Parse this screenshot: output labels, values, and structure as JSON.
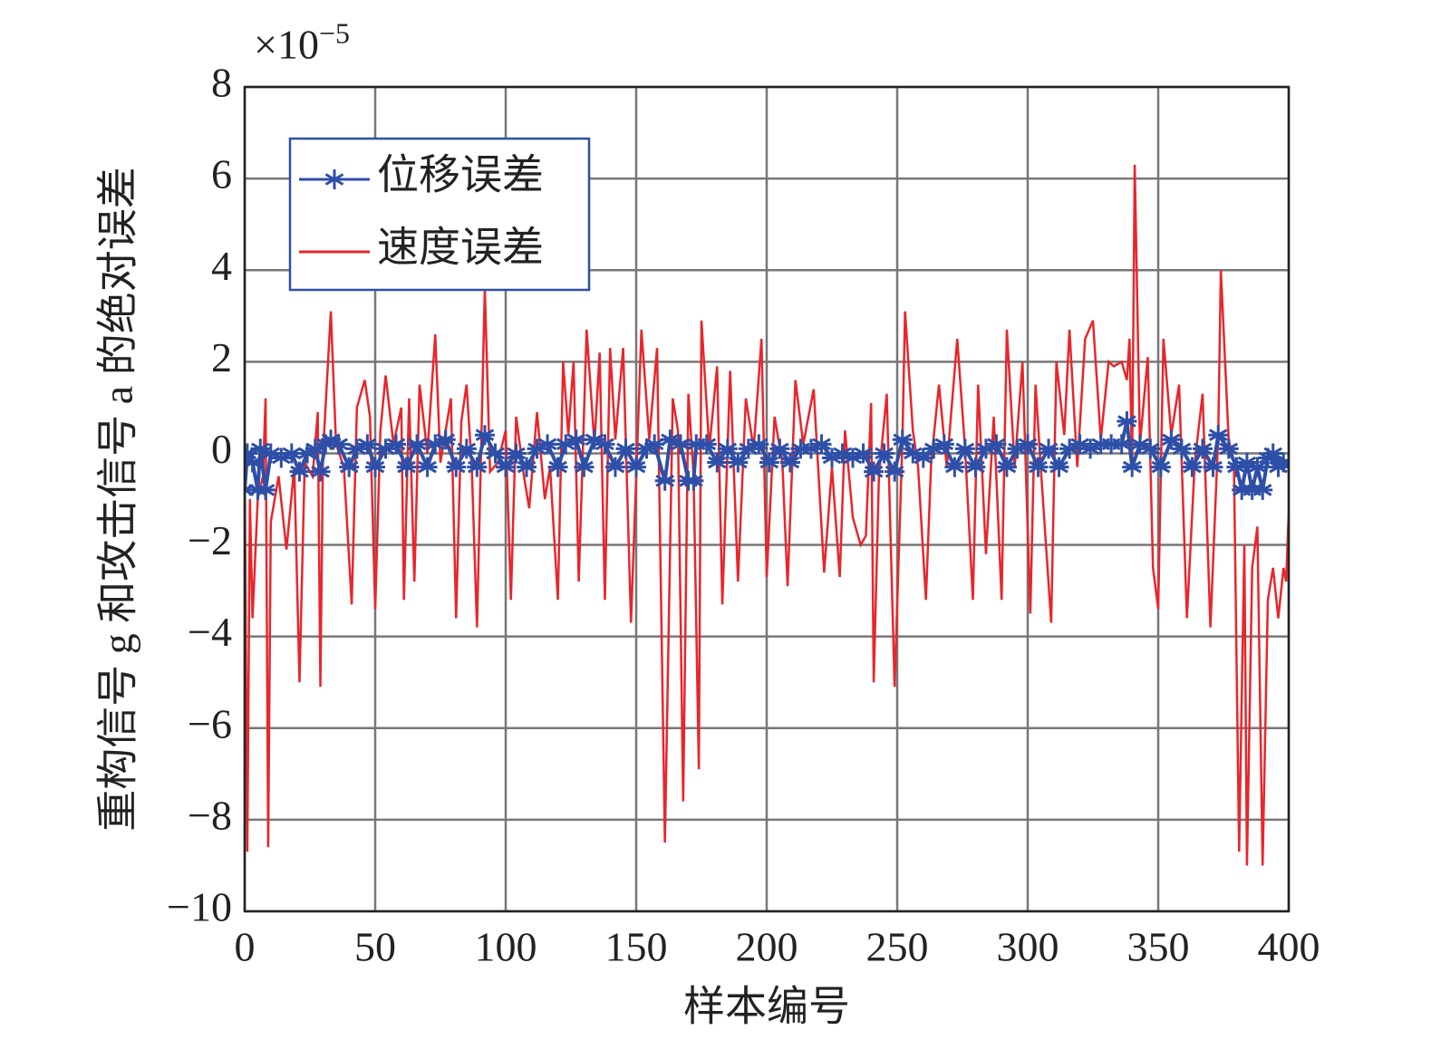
{
  "chart_data": {
    "type": "line",
    "y_label": "重构信号 g 和攻击信号 a 的绝对误差",
    "x_label": "样本编号",
    "y_multiplier": {
      "base": "×10",
      "exponent": "−5"
    },
    "xlim": [
      0,
      400
    ],
    "xticks": [
      0,
      50,
      100,
      150,
      200,
      250,
      300,
      350,
      400
    ],
    "ylim": [
      -10,
      8
    ],
    "yticks": [
      8,
      6,
      4,
      2,
      0,
      {
        "value": -2,
        "label": "−2"
      },
      {
        "value": -4,
        "label": "−4"
      },
      {
        "value": -6,
        "label": "−6"
      },
      {
        "value": -8,
        "label": "−8"
      },
      {
        "value": -10,
        "label": "−10"
      }
    ],
    "grid": true,
    "legend": "upper left",
    "series": [
      {
        "name": "位移误差",
        "color": "#2e4fa8",
        "marker": "asterisk",
        "x": [
          0,
          1,
          3,
          5,
          6,
          8,
          10,
          14,
          18,
          21,
          24,
          27,
          29,
          31,
          33,
          36,
          40,
          43,
          47,
          50,
          54,
          58,
          62,
          66,
          70,
          73,
          77,
          81,
          85,
          89,
          92,
          96,
          100,
          104,
          108,
          112,
          116,
          120,
          123,
          127,
          130,
          134,
          138,
          142,
          146,
          150,
          154,
          157,
          161,
          163,
          167,
          170,
          172,
          173,
          177,
          181,
          185,
          189,
          193,
          197,
          201,
          205,
          209,
          213,
          217,
          221,
          225,
          229,
          233,
          237,
          241,
          245,
          249,
          252,
          256,
          260,
          264,
          268,
          272,
          276,
          280,
          284,
          288,
          292,
          296,
          300,
          304,
          308,
          312,
          316,
          320,
          324,
          328,
          332,
          336,
          338,
          340,
          343,
          347,
          351,
          355,
          359,
          363,
          367,
          371,
          373,
          377,
          380,
          382,
          384,
          386,
          388,
          390,
          392,
          394,
          396,
          398,
          400
        ],
        "values": [
          -0.8,
          0,
          -0.2,
          -0.8,
          0.1,
          -0.8,
          0,
          -0.1,
          0,
          -0.4,
          0,
          0.1,
          -0.4,
          0.2,
          0.3,
          0.2,
          -0.3,
          0.1,
          0.2,
          -0.3,
          0.1,
          0.2,
          -0.3,
          0.2,
          -0.3,
          0.2,
          0.3,
          -0.3,
          0.1,
          -0.3,
          0.4,
          0,
          -0.3,
          0,
          -0.3,
          0.1,
          0.2,
          -0.3,
          0.2,
          0.3,
          -0.3,
          0.3,
          0.2,
          -0.3,
          0.1,
          -0.3,
          0.1,
          0.2,
          -0.6,
          0.3,
          0.2,
          -0.6,
          -0.6,
          0.2,
          0.2,
          -0.2,
          0.1,
          -0.2,
          0.1,
          0.2,
          -0.2,
          0.1,
          -0.2,
          0.1,
          0.1,
          0.2,
          -0.1,
          0,
          -0.1,
          0,
          -0.4,
          0,
          -0.4,
          0.3,
          0,
          -0.1,
          0.1,
          0.2,
          -0.3,
          0.1,
          -0.3,
          0.1,
          0.2,
          -0.3,
          0.1,
          0.2,
          -0.3,
          0.1,
          -0.3,
          0.1,
          0.2,
          0.1,
          0.2,
          0.2,
          0.2,
          0.7,
          -0.3,
          0.2,
          0.1,
          -0.3,
          0.3,
          0.1,
          -0.3,
          0.1,
          -0.3,
          0.4,
          0.1,
          -0.3,
          -0.8,
          -0.2,
          -0.8,
          -0.3,
          -0.8,
          -0.1,
          0,
          -0.3,
          -0.2,
          -0.2
        ]
      },
      {
        "name": "速度误差",
        "color": "#e8262b",
        "x": [
          0,
          1,
          2,
          3,
          5,
          7,
          8,
          9,
          10,
          13,
          16,
          19,
          21,
          23,
          26,
          28,
          29,
          30,
          33,
          35,
          38,
          41,
          43,
          46,
          48,
          50,
          52,
          54,
          57,
          60,
          61,
          63,
          65,
          67,
          70,
          73,
          75,
          79,
          81,
          83,
          85,
          87,
          89,
          92,
          94,
          97,
          100,
          102,
          104,
          107,
          109,
          112,
          115,
          117,
          120,
          122,
          124,
          126,
          128,
          131,
          134,
          136,
          138,
          140,
          142,
          145,
          148,
          152,
          155,
          158,
          161,
          164,
          166,
          168,
          170,
          172,
          174,
          175,
          178,
          181,
          183,
          186,
          189,
          192,
          195,
          198,
          200,
          203,
          206,
          208,
          211,
          214,
          218,
          222,
          225,
          228,
          230,
          233,
          236,
          238,
          240,
          241,
          243,
          246,
          249,
          252,
          253,
          256,
          258,
          261,
          263,
          266,
          269,
          273,
          276,
          279,
          281,
          284,
          287,
          290,
          292,
          295,
          298,
          301,
          303,
          305,
          309,
          311,
          314,
          316,
          319,
          322,
          325,
          328,
          331,
          333,
          336,
          338,
          339,
          340,
          341,
          343,
          346,
          348,
          350,
          352,
          355,
          358,
          361,
          364,
          367,
          370,
          373,
          374,
          377,
          379,
          381,
          383,
          384,
          386,
          388,
          390,
          392,
          394,
          396,
          398,
          399,
          400
        ],
        "values": [
          -0.2,
          -8.7,
          -1,
          -3.6,
          -1,
          -0.5,
          1.2,
          -8.6,
          -1.5,
          -0.5,
          -2.1,
          -0.3,
          -5,
          -0.2,
          -0.5,
          0.9,
          -5.1,
          0,
          3.1,
          0.2,
          -0.3,
          -3.3,
          1,
          1.6,
          0.8,
          -3.4,
          0.5,
          1.7,
          0.2,
          1,
          -3.2,
          1.2,
          -2.8,
          1.5,
          0,
          2.6,
          -0.2,
          1.2,
          -3.6,
          0.7,
          1.5,
          -0.3,
          -3.8,
          3.6,
          -0.4,
          -0.2,
          0.5,
          -3.2,
          0.8,
          -0.5,
          -1.2,
          0.9,
          -1,
          -0.3,
          -3.2,
          2,
          0.4,
          2,
          -2.8,
          2.7,
          0.2,
          2.2,
          -3.2,
          2.3,
          0.3,
          2.3,
          -3.7,
          2.7,
          0.3,
          2.3,
          -8.5,
          1.2,
          0.5,
          -7.6,
          1.3,
          -0.5,
          -6.9,
          2.9,
          0.1,
          1.9,
          -3.3,
          1.8,
          -2.8,
          1.2,
          0.1,
          2.5,
          -2.7,
          0.8,
          -0.2,
          -2.9,
          1.6,
          0.2,
          1.4,
          -2.6,
          -0.3,
          -2.7,
          0.5,
          -1.4,
          -2,
          -1.8,
          1.1,
          -5,
          -0.5,
          1.3,
          -5.1,
          0.3,
          3.1,
          0.5,
          -0.3,
          -3.2,
          -0.2,
          1.5,
          -0.3,
          2.5,
          0.1,
          -3.2,
          1.5,
          -2.2,
          0.8,
          -3.2,
          2.7,
          -0.3,
          2,
          -3.5,
          1.5,
          -0.3,
          -3.7,
          2,
          0.4,
          2.7,
          -0.3,
          2.5,
          2.9,
          0.3,
          2,
          1.9,
          2,
          1.6,
          2.5,
          -0.3,
          6.3,
          0.2,
          2.1,
          -2.5,
          -3.4,
          2.5,
          0.4,
          1.5,
          -3.6,
          -0.2,
          1.3,
          -3.8,
          0.4,
          4,
          0.3,
          -0.2,
          -8.7,
          -2,
          -9,
          -2.5,
          -1.6,
          -9,
          -3.2,
          -2.5,
          -3.6,
          -2.5,
          -2.8,
          -1.3
        ]
      }
    ]
  }
}
